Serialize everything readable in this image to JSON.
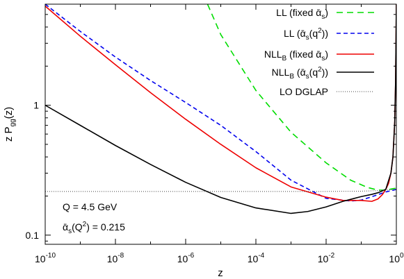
{
  "chart_data": {
    "type": "line",
    "xlabel": "z",
    "ylabel": "z P_gg(z)",
    "xscale": "log",
    "yscale": "log",
    "xlim": [
      1e-10,
      1
    ],
    "ylim": [
      0.085,
      6.0
    ],
    "x_ticks": [
      {
        "value": 1e-10,
        "base": "10",
        "exp": "-10"
      },
      {
        "value": 1e-08,
        "base": "10",
        "exp": "-8"
      },
      {
        "value": 1e-06,
        "base": "10",
        "exp": "-6"
      },
      {
        "value": 0.0001,
        "base": "10",
        "exp": "-4"
      },
      {
        "value": 0.01,
        "base": "10",
        "exp": "-2"
      },
      {
        "value": 1,
        "base": "10",
        "exp": "0"
      }
    ],
    "y_ticks": [
      {
        "value": 1,
        "label": "1"
      },
      {
        "value": 0.1,
        "label": "0.1"
      }
    ],
    "grid": false,
    "legend_position": "top-right",
    "series": [
      {
        "name": "LL (fixed ᾱs)",
        "legend_main": "LL (fixed ",
        "legend_sub": "s",
        "legend_tail": ")",
        "color": "#00dd00",
        "dash": "9,6",
        "points": [
          [
            4.2e-06,
            6.0
          ],
          [
            1e-05,
            3.5
          ],
          [
            0.0001,
            1.3
          ],
          [
            0.001,
            0.62
          ],
          [
            0.01,
            0.36
          ],
          [
            0.05,
            0.265
          ],
          [
            0.15,
            0.233
          ],
          [
            0.3,
            0.222
          ],
          [
            0.5,
            0.222
          ],
          [
            0.8,
            0.228
          ],
          [
            1.0,
            0.23
          ]
        ]
      },
      {
        "name": "LL (ᾱs(q²))",
        "legend_main": "LL (",
        "legend_sub": "s",
        "legend_tail": "(q",
        "legend_sup": "2",
        "legend_end": "))",
        "color": "#0000ee",
        "dash": "6,4",
        "points": [
          [
            1e-10,
            6.0
          ],
          [
            1e-09,
            3.7
          ],
          [
            1e-08,
            2.35
          ],
          [
            1e-07,
            1.55
          ],
          [
            1e-06,
            1.05
          ],
          [
            1e-05,
            0.7
          ],
          [
            0.0001,
            0.44
          ],
          [
            0.001,
            0.265
          ],
          [
            0.01,
            0.192
          ],
          [
            0.05,
            0.183
          ],
          [
            0.1,
            0.186
          ],
          [
            0.3,
            0.205
          ],
          [
            0.5,
            0.215
          ],
          [
            1.0,
            0.225
          ]
        ]
      },
      {
        "name": "NLL_B (fixed ᾱs)",
        "legend_main": "NLL",
        "legend_sub_b": "B",
        "legend_mid": " (fixed ",
        "legend_sub": "s",
        "legend_tail": ")",
        "color": "#ee0000",
        "dash": "",
        "points": [
          [
            1e-10,
            5.8
          ],
          [
            1e-09,
            3.4
          ],
          [
            1e-08,
            2.05
          ],
          [
            1e-07,
            1.25
          ],
          [
            1e-06,
            0.78
          ],
          [
            1e-05,
            0.5
          ],
          [
            0.0001,
            0.33
          ],
          [
            0.001,
            0.235
          ],
          [
            0.01,
            0.196
          ],
          [
            0.03,
            0.185
          ],
          [
            0.1,
            0.185
          ],
          [
            0.2,
            0.182
          ],
          [
            0.3,
            0.19
          ],
          [
            0.4,
            0.205
          ],
          [
            0.5,
            0.225
          ],
          [
            0.6,
            0.25
          ],
          [
            0.7,
            0.3
          ],
          [
            0.8,
            0.4
          ],
          [
            0.9,
            0.75
          ],
          [
            0.95,
            1.5
          ],
          [
            1.0,
            6.0
          ]
        ]
      },
      {
        "name": "NLL_B (ᾱs(q²))",
        "legend_main": "NLL",
        "legend_sub_b": "B",
        "legend_mid": " (",
        "legend_sub": "s",
        "legend_tail": "(q",
        "legend_sup": "2",
        "legend_end": "))",
        "color": "#000000",
        "dash": "",
        "points": [
          [
            1e-10,
            1.0
          ],
          [
            1e-09,
            0.7
          ],
          [
            1e-08,
            0.49
          ],
          [
            1e-07,
            0.35
          ],
          [
            1e-06,
            0.255
          ],
          [
            1e-05,
            0.195
          ],
          [
            0.0001,
            0.162
          ],
          [
            0.001,
            0.147
          ],
          [
            0.003,
            0.152
          ],
          [
            0.01,
            0.165
          ],
          [
            0.03,
            0.182
          ],
          [
            0.1,
            0.198
          ],
          [
            0.2,
            0.206
          ],
          [
            0.3,
            0.212
          ],
          [
            0.5,
            0.225
          ],
          [
            0.7,
            0.3
          ],
          [
            0.8,
            0.4
          ],
          [
            0.9,
            0.75
          ],
          [
            0.95,
            1.5
          ],
          [
            1.0,
            6.0
          ]
        ]
      },
      {
        "name": "LO DGLAP",
        "legend_main": "LO DGLAP",
        "color": "#444444",
        "dash": "1,2",
        "points": [
          [
            1e-10,
            0.217
          ],
          [
            0.01,
            0.217
          ],
          [
            0.1,
            0.218
          ],
          [
            0.3,
            0.22
          ],
          [
            0.5,
            0.222
          ],
          [
            1.0,
            0.225
          ]
        ]
      }
    ],
    "annotations": [
      {
        "parts": [
          {
            "t": "Q = 4.5 GeV"
          }
        ]
      },
      {
        "parts": [
          {
            "t": "α",
            "bar": true
          },
          {
            "t": "s",
            "sub": true
          },
          {
            "t": "(Q"
          },
          {
            "t": "2",
            "sup": true
          },
          {
            "t": ") = 0.215"
          }
        ]
      }
    ]
  }
}
